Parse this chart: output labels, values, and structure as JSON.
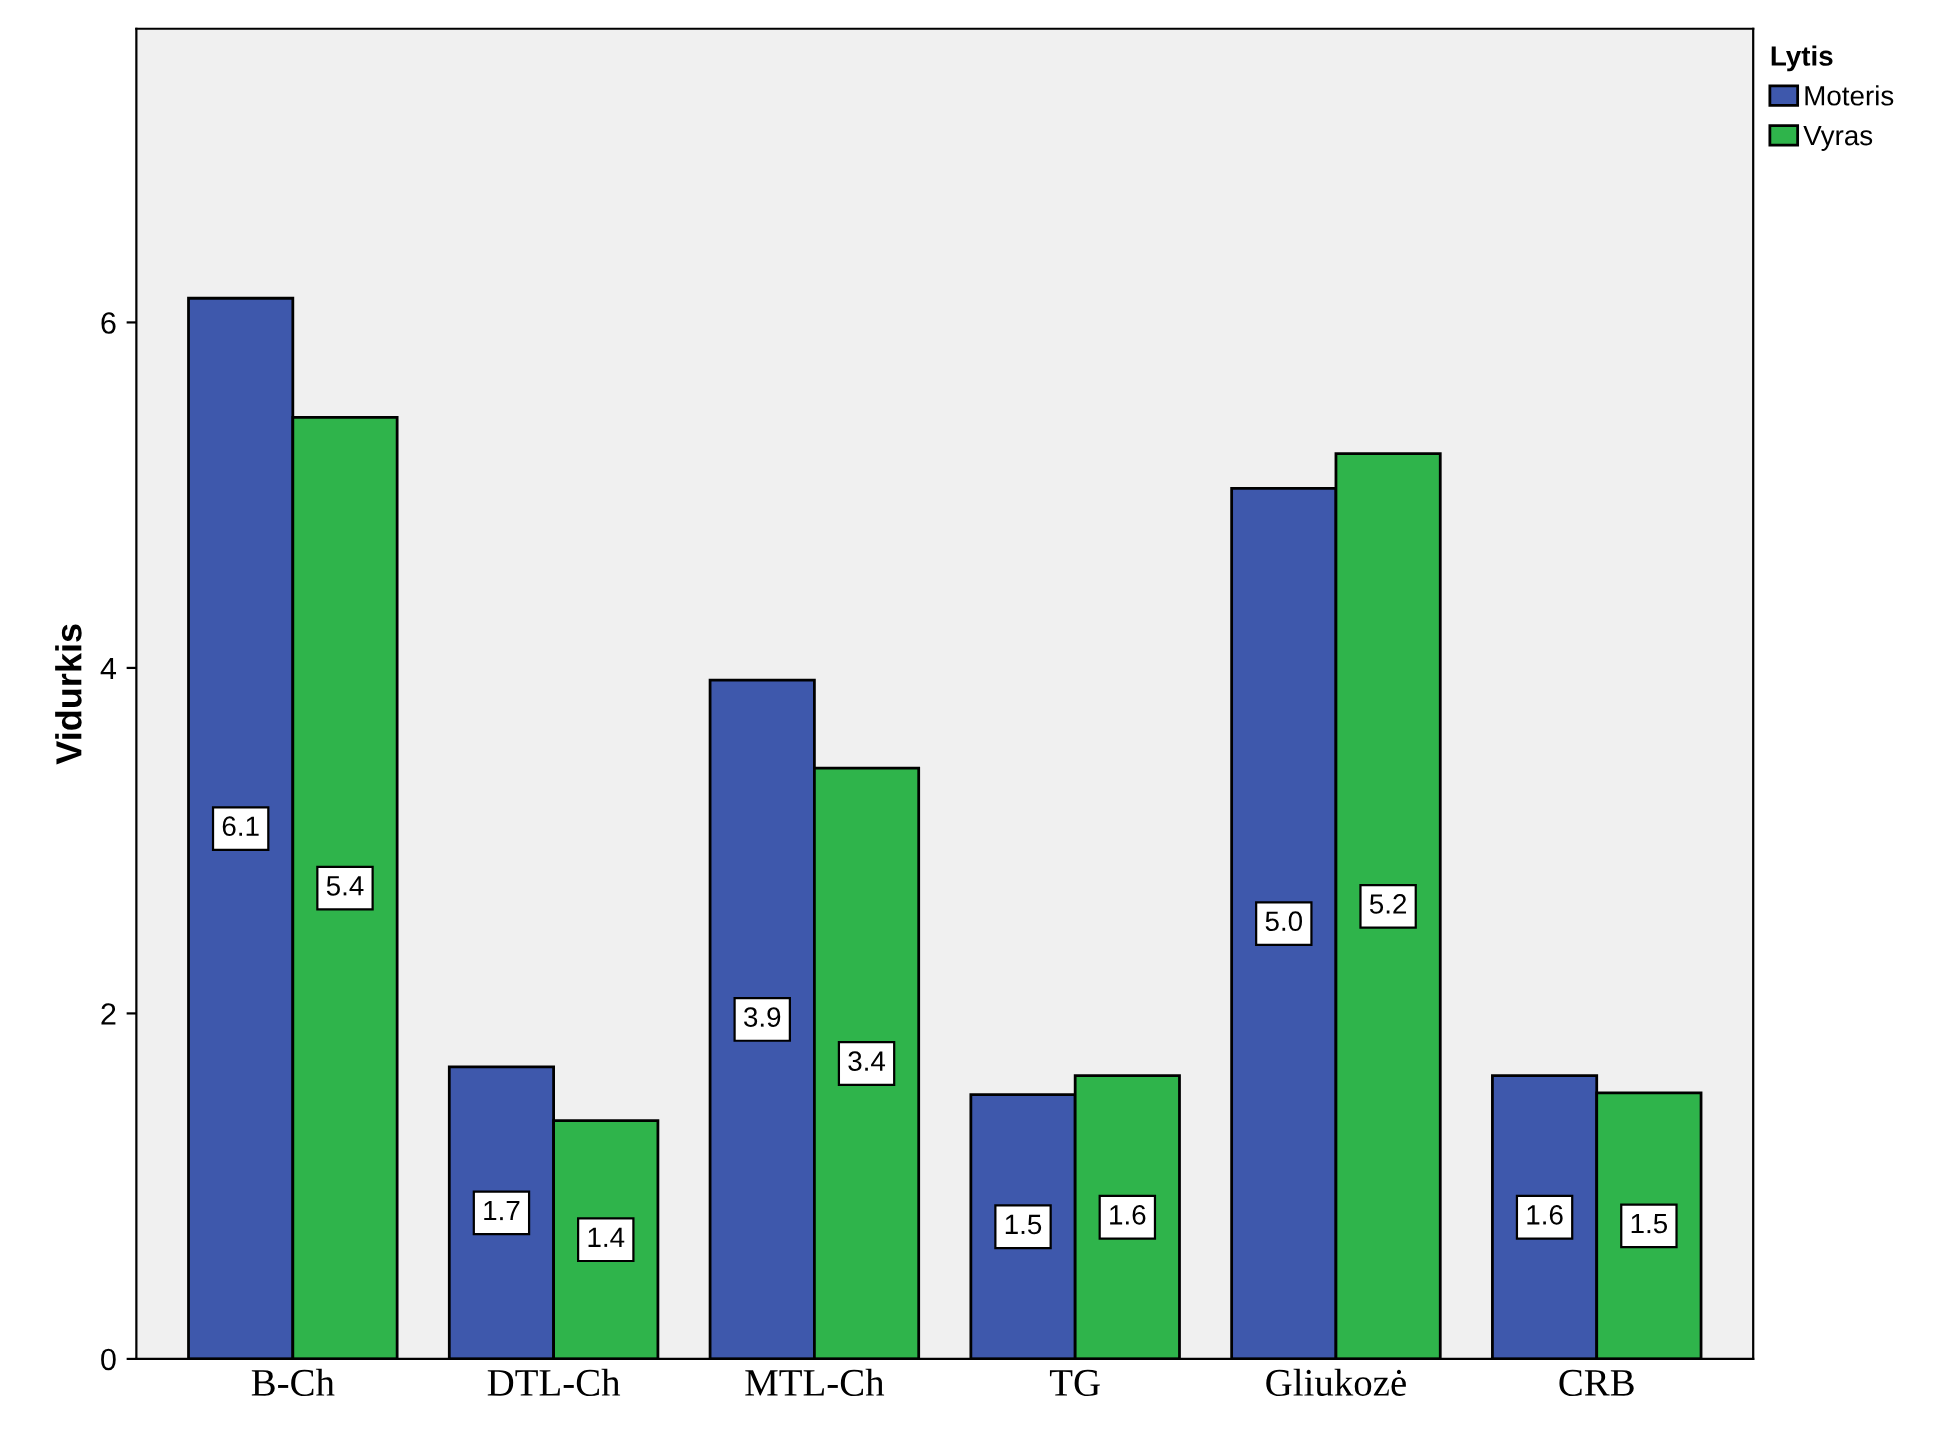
{
  "chart_data": {
    "type": "bar",
    "ylabel": "Vidurkis",
    "legend_title": "Lytis",
    "categories": [
      "B-Ch",
      "DTL-Ch",
      "MTL-Ch",
      "TG",
      "Gliukozė",
      "CRB"
    ],
    "series": [
      {
        "name": "Moteris",
        "color": "#3e58ac",
        "values": [
          6.14,
          1.69,
          3.93,
          1.53,
          5.04,
          1.64
        ],
        "value_labels": [
          "6.1",
          "1.7",
          "3.9",
          "1.5",
          "5.0",
          "1.6"
        ]
      },
      {
        "name": "Vyras",
        "color": "#2fb44b",
        "values": [
          5.45,
          1.38,
          3.42,
          1.64,
          5.24,
          1.54
        ],
        "value_labels": [
          "5.4",
          "1.4",
          "3.4",
          "1.6",
          "5.2",
          "1.5"
        ]
      }
    ],
    "ylim": [
      0,
      7.7
    ],
    "yticks": [
      0,
      2,
      4,
      6
    ],
    "grid": false,
    "legend": "top right"
  }
}
